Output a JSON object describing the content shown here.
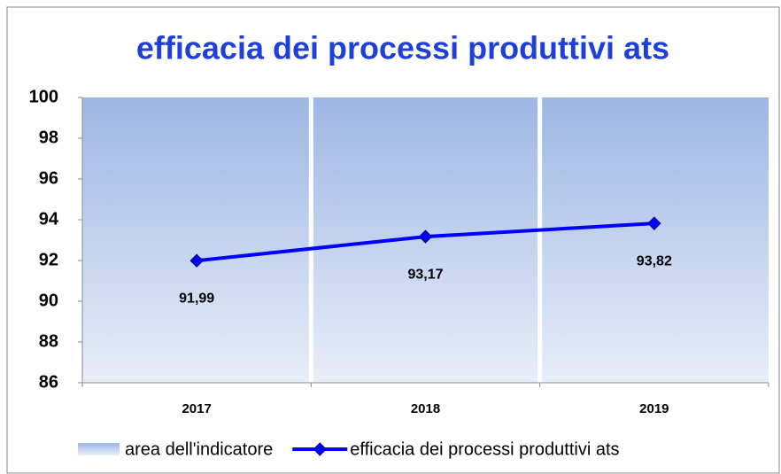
{
  "chart_data": {
    "type": "combo",
    "title": "efficacia dei processi produttivi ats",
    "categories": [
      "2017",
      "2018",
      "2019"
    ],
    "series": [
      {
        "name": "area dell'indicatore",
        "type": "bar",
        "color": "#9db6e4",
        "values": [
          100,
          100,
          100
        ]
      },
      {
        "name": "efficacia dei processi produttivi ats",
        "type": "line",
        "color": "#0000ff",
        "values": [
          91.99,
          93.17,
          93.82
        ],
        "value_labels": [
          "91,99",
          "93,17",
          "93,82"
        ]
      }
    ],
    "ylim": [
      86,
      100
    ],
    "yticks": [
      86,
      88,
      90,
      92,
      94,
      96,
      98,
      100
    ],
    "legend": "bottom"
  }
}
